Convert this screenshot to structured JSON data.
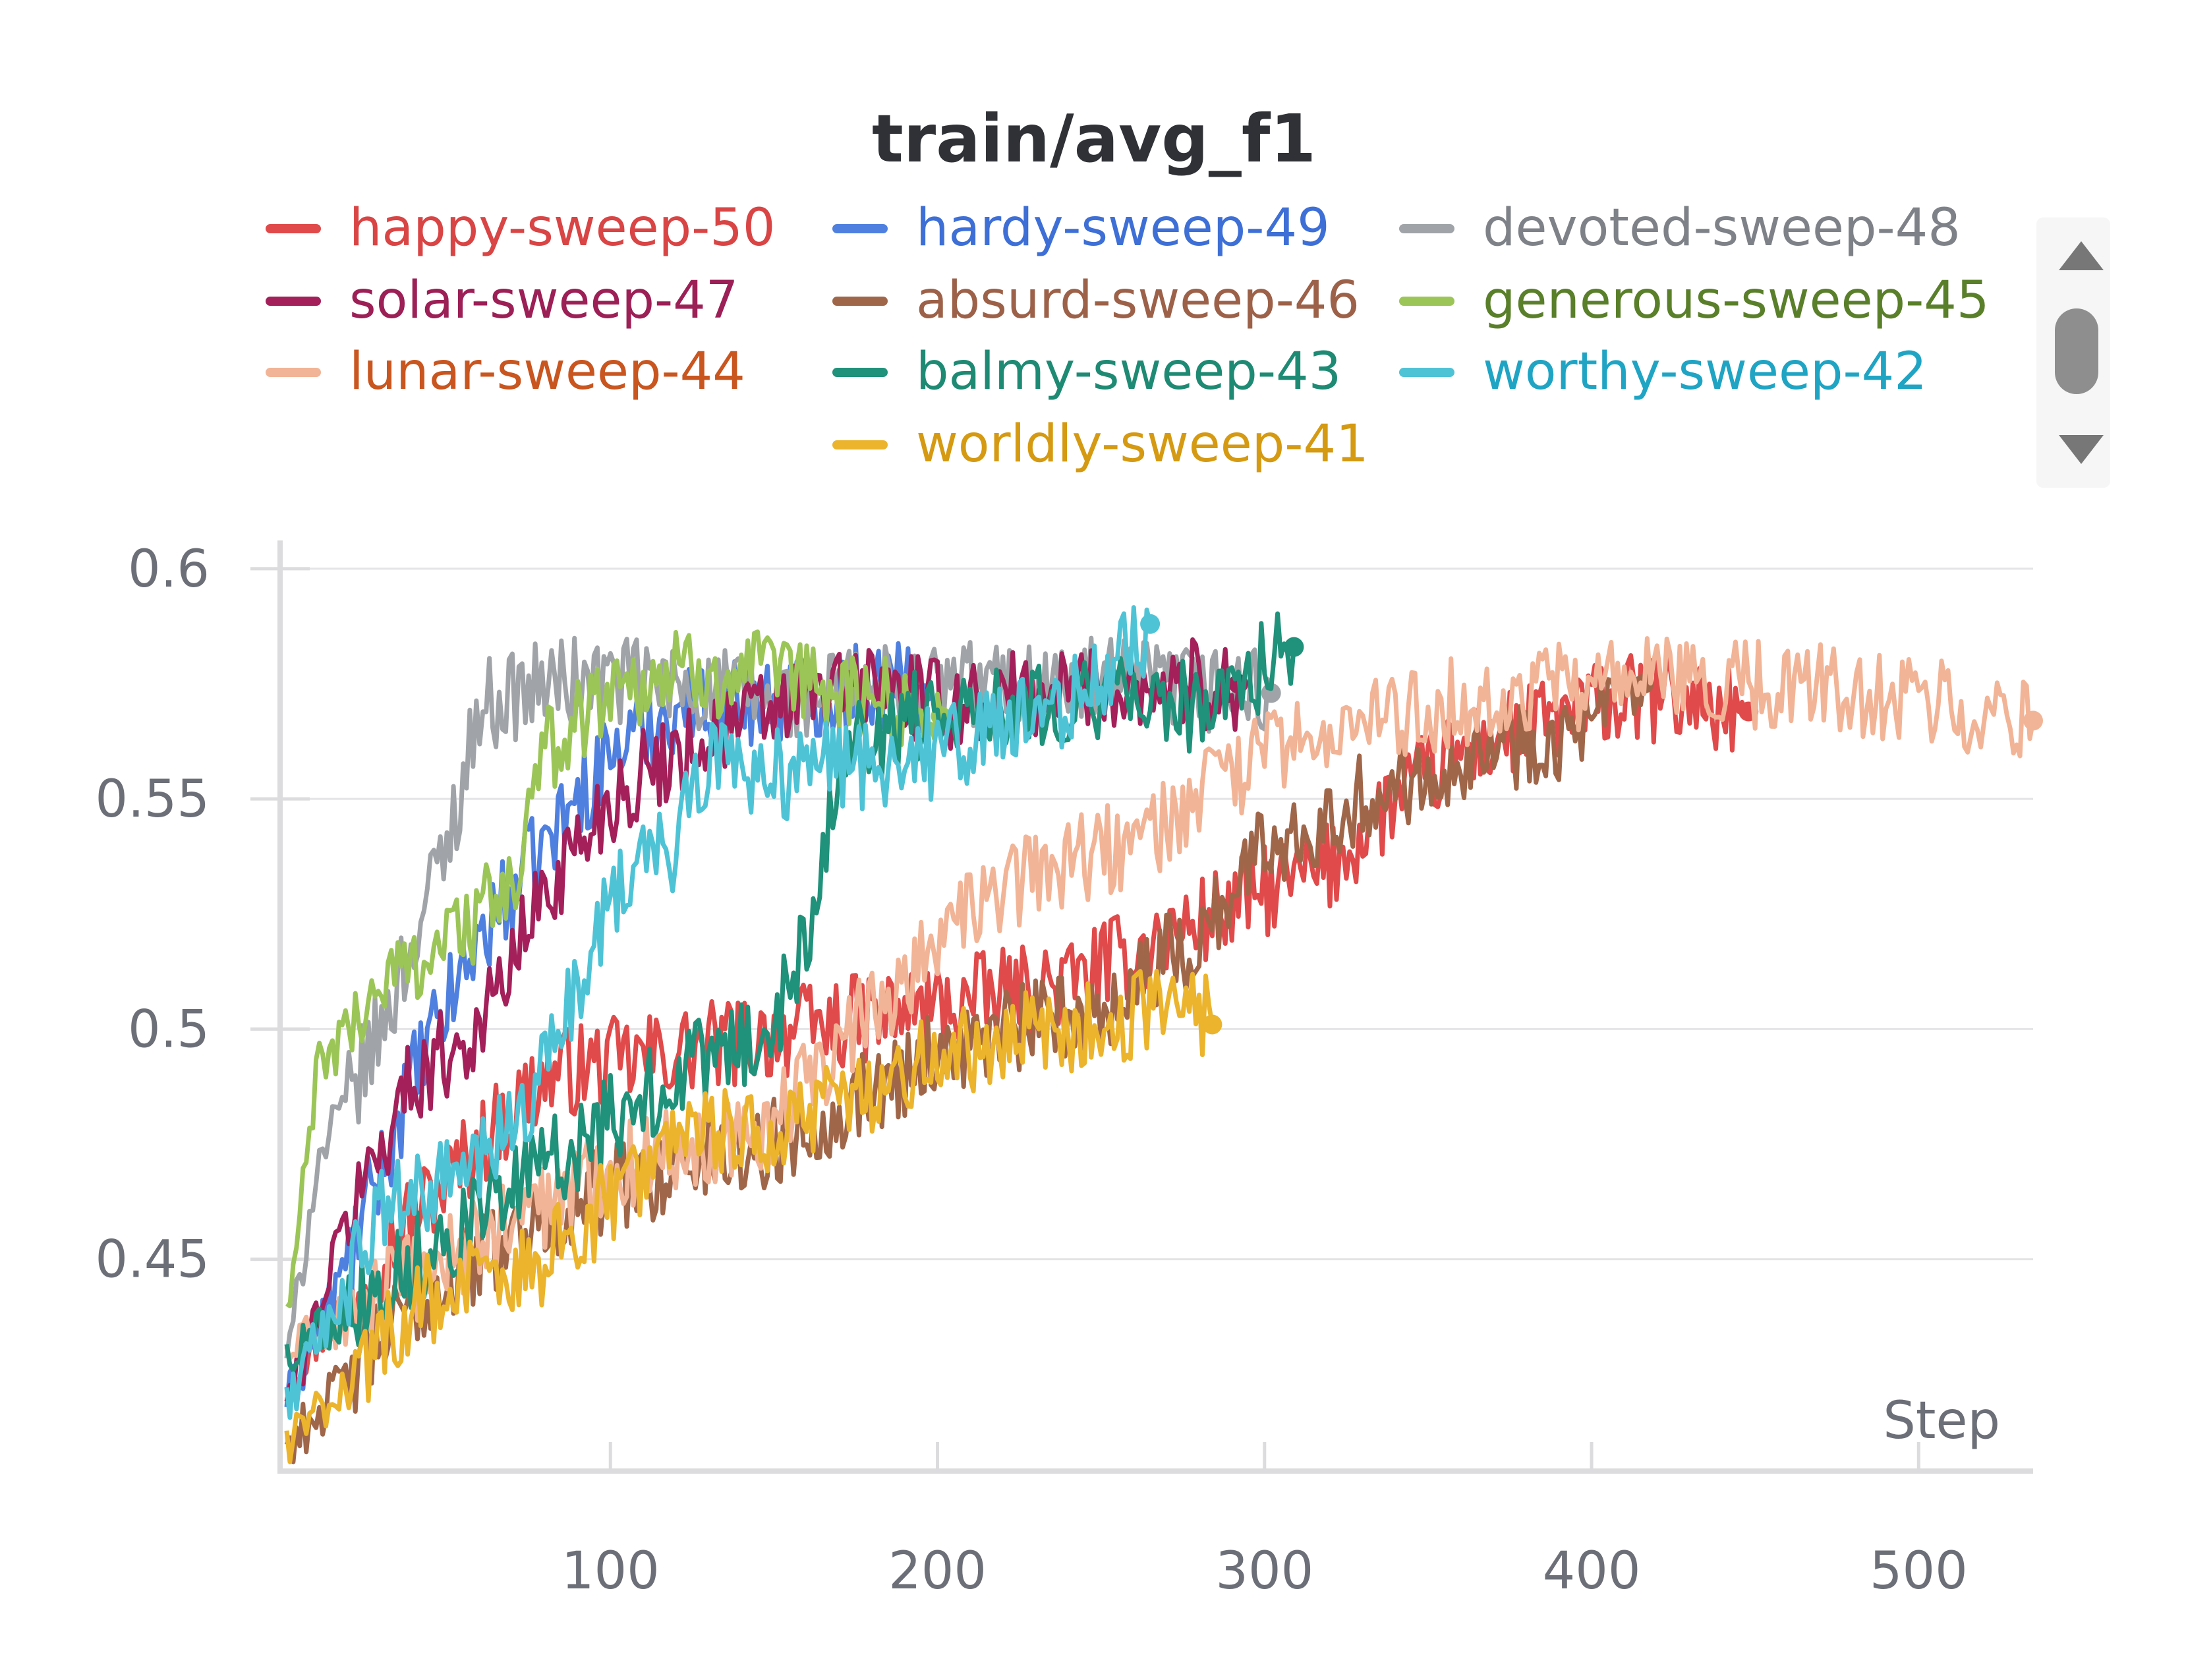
{
  "chart_data": {
    "type": "line",
    "title": "train/avg_f1",
    "xlabel": "Step",
    "ylabel": "",
    "xlim": [
      0,
      535
    ],
    "ylim": [
      0.405,
      0.605
    ],
    "x_ticks": [
      100,
      200,
      300,
      400,
      500
    ],
    "y_ticks": [
      0.45,
      0.5,
      0.55,
      0.6
    ],
    "y_tick_labels": [
      "0.45",
      "0.5",
      "0.55",
      "0.6"
    ],
    "grid": true,
    "legend_position": "top",
    "series": [
      {
        "name": "happy-sweep-50",
        "color": "#e04a4a",
        "last_step": 448,
        "anchors": [
          [
            2,
            0.425
          ],
          [
            40,
            0.46
          ],
          [
            80,
            0.49
          ],
          [
            120,
            0.495
          ],
          [
            160,
            0.5
          ],
          [
            200,
            0.505
          ],
          [
            240,
            0.51
          ],
          [
            270,
            0.52
          ],
          [
            300,
            0.53
          ],
          [
            320,
            0.535
          ],
          [
            340,
            0.55
          ],
          [
            360,
            0.56
          ],
          [
            380,
            0.565
          ],
          [
            400,
            0.57
          ],
          [
            420,
            0.572
          ],
          [
            448,
            0.569
          ]
        ]
      },
      {
        "name": "hardy-sweep-49",
        "color": "#4f80e0",
        "last_step": 196,
        "anchors": [
          [
            2,
            0.42
          ],
          [
            20,
            0.45
          ],
          [
            40,
            0.49
          ],
          [
            60,
            0.52
          ],
          [
            80,
            0.54
          ],
          [
            100,
            0.56
          ],
          [
            120,
            0.57
          ],
          [
            150,
            0.572
          ],
          [
            180,
            0.575
          ],
          [
            196,
            0.573
          ]
        ]
      },
      {
        "name": "devoted-sweep-48",
        "color": "#a0a4a8",
        "last_step": 302,
        "anchors": [
          [
            2,
            0.43
          ],
          [
            10,
            0.47
          ],
          [
            30,
            0.5
          ],
          [
            50,
            0.54
          ],
          [
            60,
            0.57
          ],
          [
            80,
            0.575
          ],
          [
            100,
            0.576
          ],
          [
            150,
            0.572
          ],
          [
            200,
            0.575
          ],
          [
            250,
            0.575
          ],
          [
            302,
            0.573
          ]
        ]
      },
      {
        "name": "solar-sweep-47",
        "color": "#a3205a",
        "last_step": 292,
        "anchors": [
          [
            2,
            0.42
          ],
          [
            20,
            0.46
          ],
          [
            40,
            0.49
          ],
          [
            60,
            0.5
          ],
          [
            80,
            0.53
          ],
          [
            100,
            0.55
          ],
          [
            120,
            0.56
          ],
          [
            150,
            0.57
          ],
          [
            180,
            0.575
          ],
          [
            200,
            0.57
          ],
          [
            250,
            0.575
          ],
          [
            292,
            0.575
          ]
        ]
      },
      {
        "name": "absurd-sweep-46",
        "color": "#a0664a",
        "last_step": 416,
        "anchors": [
          [
            2,
            0.41
          ],
          [
            40,
            0.44
          ],
          [
            80,
            0.46
          ],
          [
            100,
            0.465
          ],
          [
            120,
            0.47
          ],
          [
            150,
            0.475
          ],
          [
            200,
            0.495
          ],
          [
            250,
            0.505
          ],
          [
            280,
            0.52
          ],
          [
            300,
            0.54
          ],
          [
            330,
            0.55
          ],
          [
            360,
            0.56
          ],
          [
            400,
            0.565
          ],
          [
            416,
            0.575
          ]
        ]
      },
      {
        "name": "generous-sweep-45",
        "color": "#9cc558",
        "last_step": 201,
        "anchors": [
          [
            2,
            0.44
          ],
          [
            10,
            0.49
          ],
          [
            30,
            0.51
          ],
          [
            50,
            0.52
          ],
          [
            70,
            0.53
          ],
          [
            80,
            0.56
          ],
          [
            100,
            0.575
          ],
          [
            130,
            0.578
          ],
          [
            160,
            0.575
          ],
          [
            201,
            0.568
          ]
        ]
      },
      {
        "name": "lunar-sweep-44",
        "color": "#f2b496",
        "last_step": 535,
        "anchors": [
          [
            2,
            0.43
          ],
          [
            50,
            0.45
          ],
          [
            100,
            0.47
          ],
          [
            150,
            0.48
          ],
          [
            200,
            0.52
          ],
          [
            230,
            0.535
          ],
          [
            260,
            0.54
          ],
          [
            280,
            0.55
          ],
          [
            300,
            0.56
          ],
          [
            350,
            0.57
          ],
          [
            400,
            0.575
          ],
          [
            450,
            0.575
          ],
          [
            500,
            0.572
          ],
          [
            535,
            0.567
          ]
        ]
      },
      {
        "name": "balmy-sweep-43",
        "color": "#20917a",
        "last_step": 309,
        "anchors": [
          [
            2,
            0.43
          ],
          [
            40,
            0.45
          ],
          [
            80,
            0.47
          ],
          [
            120,
            0.49
          ],
          [
            150,
            0.5
          ],
          [
            160,
            0.52
          ],
          [
            170,
            0.56
          ],
          [
            200,
            0.57
          ],
          [
            250,
            0.572
          ],
          [
            280,
            0.57
          ],
          [
            309,
            0.583
          ]
        ]
      },
      {
        "name": "worthy-sweep-42",
        "color": "#4fc3d6",
        "last_step": 265,
        "anchors": [
          [
            2,
            0.42
          ],
          [
            30,
            0.46
          ],
          [
            60,
            0.47
          ],
          [
            80,
            0.49
          ],
          [
            100,
            0.53
          ],
          [
            120,
            0.54
          ],
          [
            130,
            0.56
          ],
          [
            150,
            0.555
          ],
          [
            200,
            0.56
          ],
          [
            240,
            0.57
          ],
          [
            265,
            0.588
          ]
        ]
      },
      {
        "name": "worldly-sweep-41",
        "color": "#ebb42c",
        "last_step": 284,
        "anchors": [
          [
            2,
            0.41
          ],
          [
            40,
            0.44
          ],
          [
            80,
            0.45
          ],
          [
            120,
            0.475
          ],
          [
            160,
            0.48
          ],
          [
            200,
            0.495
          ],
          [
            240,
            0.5
          ],
          [
            280,
            0.505
          ],
          [
            284,
            0.501
          ]
        ]
      }
    ]
  },
  "legend": {
    "rows": [
      [
        "happy-sweep-50",
        "hardy-sweep-49",
        "devoted-sweep-48"
      ],
      [
        "solar-sweep-47",
        "absurd-sweep-46",
        "generous-sweep-45"
      ],
      [
        "lunar-sweep-44",
        "balmy-sweep-43",
        "worthy-sweep-42"
      ],
      [
        "worldly-sweep-41"
      ]
    ],
    "text_colors": {
      "happy-sweep-50": "#d94444",
      "hardy-sweep-49": "#3d6fd6",
      "devoted-sweep-48": "#7e8288",
      "solar-sweep-47": "#9c1f56",
      "absurd-sweep-46": "#9c6148",
      "generous-sweep-45": "#5a7f2a",
      "lunar-sweep-44": "#c9551f",
      "balmy-sweep-43": "#1e8a74",
      "worthy-sweep-42": "#1fa4c4",
      "worldly-sweep-41": "#d59a12"
    }
  },
  "scroll_icons": {
    "up": "scroll-up-icon",
    "down": "scroll-down-icon"
  }
}
